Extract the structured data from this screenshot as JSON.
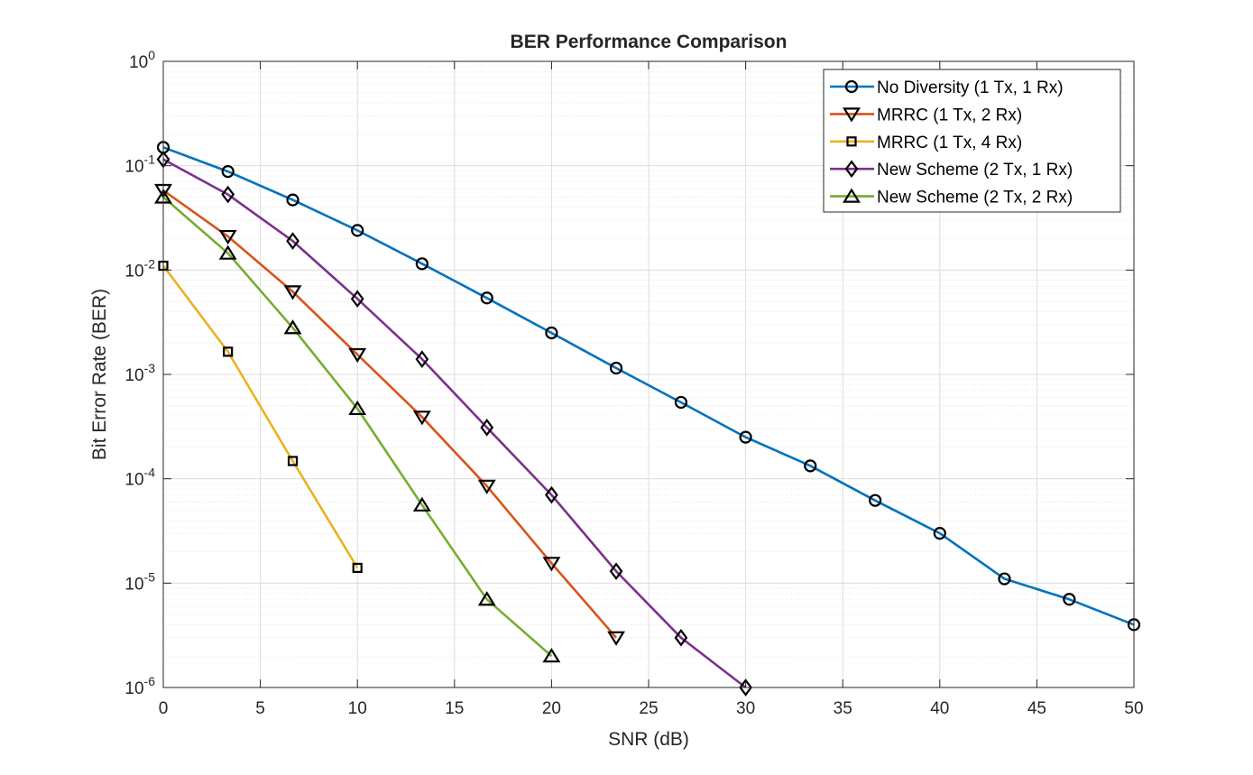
{
  "chart_data": {
    "type": "line",
    "title": "BER Performance Comparison",
    "xlabel": "SNR (dB)",
    "ylabel": "Bit Error Rate (BER)",
    "xlim": [
      0,
      50
    ],
    "ylim": [
      1e-06,
      1
    ],
    "yscale": "log",
    "grid": true,
    "minor_grid": true,
    "legend_position": "top-right",
    "x_ticks": [
      0,
      5,
      10,
      15,
      20,
      25,
      30,
      35,
      40,
      45,
      50
    ],
    "x_tick_labels": [
      "0",
      "5",
      "10",
      "15",
      "20",
      "25",
      "30",
      "35",
      "40",
      "45",
      "50"
    ],
    "y_ticks": [
      {
        "value": 1,
        "base": "10",
        "exp": "0"
      },
      {
        "value": 0.1,
        "base": "10",
        "exp": "-1"
      },
      {
        "value": 0.01,
        "base": "10",
        "exp": "-2"
      },
      {
        "value": 0.001,
        "base": "10",
        "exp": "-3"
      },
      {
        "value": 0.0001,
        "base": "10",
        "exp": "-4"
      },
      {
        "value": 1e-05,
        "base": "10",
        "exp": "-5"
      },
      {
        "value": 1e-06,
        "base": "10",
        "exp": "-6"
      }
    ],
    "series": [
      {
        "name": "No Diversity (1 Tx, 1 Rx)",
        "color": "#0072BD",
        "marker": "circle",
        "x": [
          0,
          3.33,
          6.67,
          10,
          13.33,
          16.67,
          20,
          23.33,
          26.67,
          30,
          33.33,
          36.67,
          40,
          43.33,
          46.67,
          50
        ],
        "y": [
          0.15,
          0.088,
          0.047,
          0.024,
          0.0115,
          0.0054,
          0.0025,
          0.00115,
          0.00054,
          0.00025,
          0.000133,
          6.2e-05,
          3e-05,
          1.1e-05,
          7e-06,
          4e-06
        ]
      },
      {
        "name": "MRRC (1 Tx, 2 Rx)",
        "color": "#D95319",
        "marker": "triangle-down",
        "x": [
          0,
          3.33,
          6.67,
          10,
          13.33,
          16.67,
          20,
          23.33
        ],
        "y": [
          0.058,
          0.021,
          0.0062,
          0.00155,
          0.00039,
          8.5e-05,
          1.55e-05,
          3e-06
        ]
      },
      {
        "name": "MRRC (1 Tx, 4 Rx)",
        "color": "#EDB120",
        "marker": "square",
        "x": [
          0,
          3.33,
          6.67,
          10
        ],
        "y": [
          0.011,
          0.00165,
          0.000148,
          1.4e-05
        ]
      },
      {
        "name": "New Scheme (2 Tx, 1 Rx)",
        "color": "#7E2F8E",
        "marker": "diamond",
        "x": [
          0,
          3.33,
          6.67,
          10,
          13.33,
          16.67,
          20,
          23.33,
          26.67,
          30
        ],
        "y": [
          0.115,
          0.053,
          0.019,
          0.0053,
          0.0014,
          0.00031,
          7e-05,
          1.3e-05,
          3e-06,
          1e-06
        ]
      },
      {
        "name": "New Scheme (2 Tx, 2 Rx)",
        "color": "#77AC30",
        "marker": "triangle-up",
        "x": [
          0,
          3.33,
          6.67,
          10,
          13.33,
          16.67,
          20
        ],
        "y": [
          0.05,
          0.0145,
          0.0028,
          0.00047,
          5.6e-05,
          7e-06,
          2e-06
        ]
      }
    ]
  }
}
